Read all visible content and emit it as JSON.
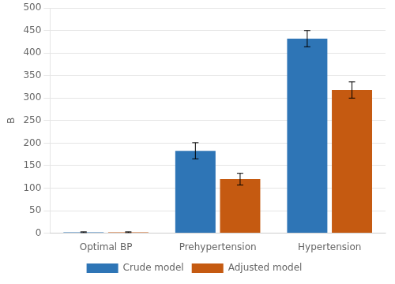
{
  "chart_data": {
    "type": "bar",
    "categories": [
      "Optimal BP",
      "Prehypertension",
      "Hypertension"
    ],
    "series": [
      {
        "name": "Crude model",
        "color": "#2E75B6",
        "values": [
          2,
          183,
          432
        ],
        "errors": [
          1,
          18,
          18
        ]
      },
      {
        "name": "Adjusted model",
        "color": "#C55A11",
        "values": [
          2,
          120,
          318
        ],
        "errors": [
          1,
          13,
          18
        ]
      }
    ],
    "ylabel": "B",
    "ylim": [
      0,
      500
    ],
    "yticks": [
      0,
      50,
      100,
      150,
      200,
      250,
      300,
      350,
      400,
      450,
      500
    ],
    "grid": true,
    "legend": "bottom"
  }
}
